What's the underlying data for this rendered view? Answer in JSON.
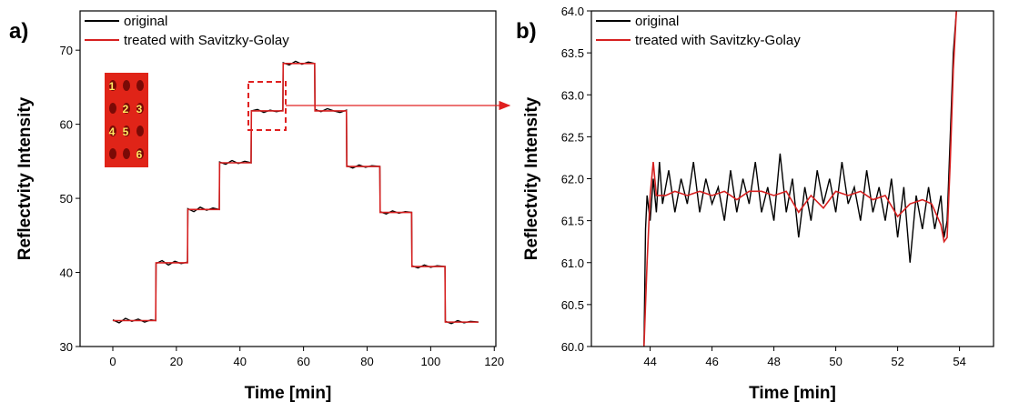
{
  "chart_data": [
    {
      "type": "line",
      "panel_label": "a)",
      "x_label": "Time [min]",
      "y_label": "Reflectvity Intensity",
      "xlim": [
        -10.3,
        120.5
      ],
      "ylim": [
        30,
        75.3
      ],
      "xticks": [
        0,
        20,
        40,
        60,
        80,
        100,
        120
      ],
      "yticks": [
        30,
        40,
        50,
        60,
        70
      ],
      "legend": "upper left",
      "inset_labels": [
        "1",
        "2",
        "3",
        "4",
        "5",
        "6"
      ],
      "series": [
        {
          "name": "original",
          "color": "#000000",
          "x": [
            0,
            2,
            4,
            6,
            8,
            10,
            12,
            13.5,
            13.6,
            15.5,
            17.5,
            19.5,
            21.5,
            23.5,
            23.6,
            25.5,
            27.5,
            29.5,
            31.5,
            33.5,
            33.6,
            35.5,
            37.5,
            39.5,
            41.5,
            43.5,
            43.6,
            45.5,
            47.5,
            49.5,
            51.5,
            53.5,
            53.6,
            55.5,
            57.5,
            59.5,
            61.5,
            63.5,
            63.6,
            65.5,
            67.5,
            69.5,
            71.5,
            73.5,
            73.6,
            75.5,
            77.5,
            79.5,
            81.5,
            84,
            84.1,
            86,
            88,
            90,
            92,
            94,
            94.1,
            96,
            98,
            100,
            102,
            104.5,
            104.6,
            106.5,
            108.5,
            110.5,
            112.5,
            115
          ],
          "values": [
            33.6,
            33.2,
            33.8,
            33.4,
            33.7,
            33.3,
            33.6,
            33.5,
            41.2,
            41.6,
            41.0,
            41.5,
            41.2,
            41.4,
            48.6,
            48.2,
            48.8,
            48.4,
            48.7,
            48.5,
            54.9,
            54.6,
            55.1,
            54.7,
            55.0,
            54.8,
            61.8,
            62.0,
            61.6,
            61.9,
            61.7,
            61.9,
            68.3,
            68.0,
            68.5,
            68.1,
            68.4,
            68.2,
            62.0,
            61.7,
            62.1,
            61.8,
            61.6,
            61.9,
            54.4,
            54.1,
            54.5,
            54.2,
            54.4,
            54.3,
            48.2,
            47.9,
            48.3,
            48.0,
            48.2,
            48.1,
            40.9,
            40.6,
            41.0,
            40.7,
            40.9,
            40.8,
            33.4,
            33.1,
            33.5,
            33.2,
            33.4,
            33.3
          ]
        },
        {
          "name": "treated with Savitzky-Golay",
          "color": "#d62020",
          "x": [
            0,
            13.5,
            13.6,
            23.5,
            23.6,
            33.5,
            33.6,
            43.5,
            43.6,
            53.5,
            53.6,
            63.5,
            63.6,
            73.5,
            73.6,
            84,
            84.1,
            94,
            94.1,
            104.5,
            104.6,
            115
          ],
          "values": [
            33.5,
            33.5,
            41.3,
            41.3,
            48.5,
            48.5,
            54.8,
            54.8,
            61.8,
            61.8,
            68.2,
            68.2,
            61.8,
            61.8,
            54.3,
            54.3,
            48.1,
            48.1,
            40.8,
            40.8,
            33.3,
            33.3
          ]
        }
      ]
    },
    {
      "type": "line",
      "panel_label": "b)",
      "x_label": "Time [min]",
      "y_label": "Reflectvity Intensity",
      "xlim": [
        42.1,
        55.1
      ],
      "ylim": [
        60,
        64
      ],
      "xticks": [
        44,
        46,
        48,
        50,
        52,
        54
      ],
      "yticks": [
        {
          "value": 60,
          "label": "60.0"
        },
        {
          "value": 60.5,
          "label": "60.5"
        },
        {
          "value": 61,
          "label": "61.0"
        },
        {
          "value": 61.5,
          "label": "61.5"
        },
        {
          "value": 62,
          "label": "62.0"
        },
        {
          "value": 62.5,
          "label": "62.5"
        },
        {
          "value": 63,
          "label": "63.0"
        },
        {
          "value": 63.5,
          "label": "63.5"
        },
        {
          "value": 64,
          "label": "64.0"
        }
      ],
      "legend": "upper left",
      "series": [
        {
          "name": "original",
          "color": "#000000",
          "x": [
            43.8,
            43.85,
            43.9,
            44.0,
            44.1,
            44.2,
            44.3,
            44.4,
            44.6,
            44.8,
            45.0,
            45.2,
            45.4,
            45.6,
            45.8,
            46.0,
            46.2,
            46.4,
            46.6,
            46.8,
            47.0,
            47.2,
            47.4,
            47.6,
            47.8,
            48.0,
            48.2,
            48.4,
            48.6,
            48.8,
            49.0,
            49.2,
            49.4,
            49.6,
            49.8,
            50.0,
            50.2,
            50.4,
            50.6,
            50.8,
            51.0,
            51.2,
            51.4,
            51.6,
            51.8,
            52.0,
            52.2,
            52.4,
            52.6,
            52.8,
            53.0,
            53.2,
            53.4,
            53.5,
            53.6,
            53.7,
            53.8,
            53.9
          ],
          "values": [
            60.0,
            61.4,
            61.8,
            61.5,
            62.0,
            61.6,
            62.2,
            61.7,
            62.1,
            61.6,
            62.0,
            61.7,
            62.2,
            61.6,
            62.0,
            61.7,
            61.9,
            61.5,
            62.1,
            61.6,
            62.0,
            61.7,
            62.2,
            61.6,
            61.9,
            61.5,
            62.3,
            61.6,
            62.0,
            61.3,
            61.9,
            61.5,
            62.1,
            61.7,
            62.0,
            61.6,
            62.2,
            61.7,
            61.9,
            61.5,
            62.1,
            61.6,
            61.9,
            61.5,
            62.0,
            61.3,
            61.9,
            61.0,
            61.8,
            61.4,
            61.9,
            61.4,
            61.8,
            61.3,
            61.5,
            62.5,
            63.5,
            64.0
          ]
        },
        {
          "name": "treated with Savitzky-Golay",
          "color": "#d62020",
          "x": [
            43.8,
            43.9,
            44.0,
            44.1,
            44.2,
            44.5,
            44.8,
            45.2,
            45.6,
            46.0,
            46.4,
            46.8,
            47.2,
            47.6,
            48.0,
            48.4,
            48.8,
            49.2,
            49.6,
            50.0,
            50.4,
            50.8,
            51.2,
            51.6,
            52.0,
            52.4,
            52.8,
            53.1,
            53.4,
            53.5,
            53.6,
            53.7,
            53.8,
            53.9
          ],
          "values": [
            60.0,
            61.0,
            61.8,
            62.2,
            61.8,
            61.8,
            61.85,
            61.8,
            61.85,
            61.8,
            61.85,
            61.75,
            61.85,
            61.85,
            61.8,
            61.85,
            61.6,
            61.8,
            61.65,
            61.85,
            61.8,
            61.85,
            61.75,
            61.8,
            61.55,
            61.7,
            61.75,
            61.7,
            61.45,
            61.25,
            61.3,
            62.2,
            63.3,
            64.0
          ]
        }
      ]
    }
  ]
}
